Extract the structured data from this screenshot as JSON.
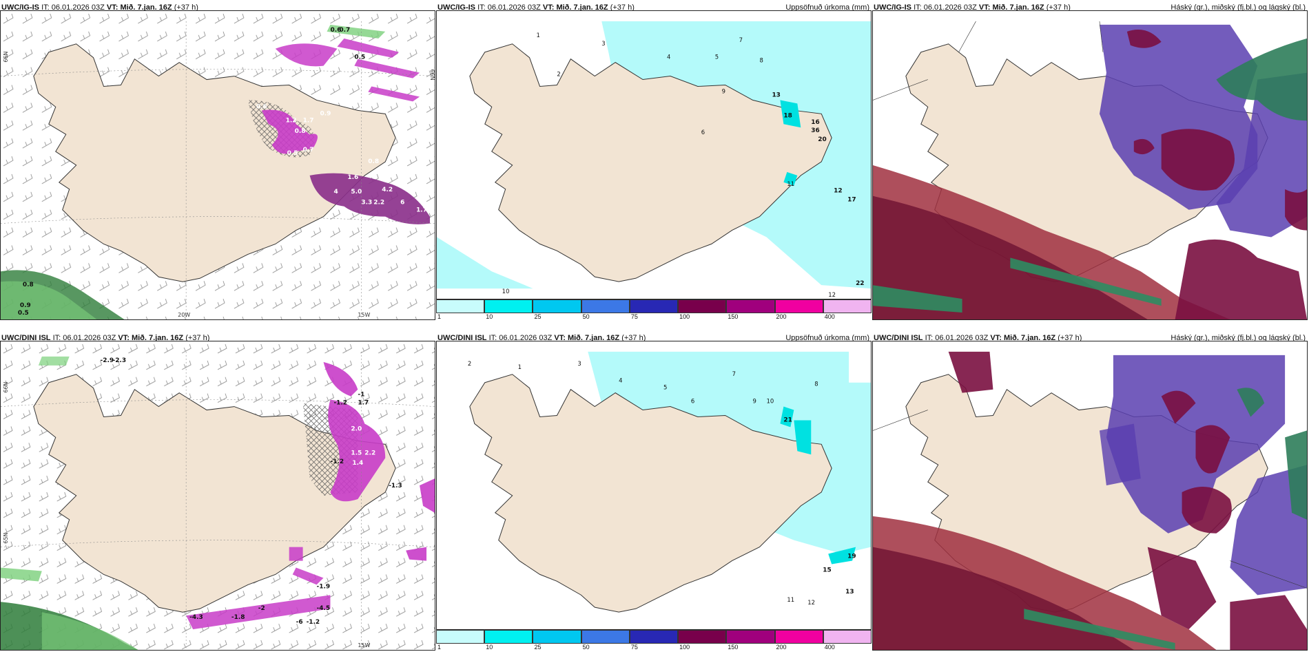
{
  "panels": {
    "p1": {
      "model": "UWC/IG-IS",
      "it_label": "IT:",
      "it": "06.01.2026 03Z",
      "vt_label": "VT:",
      "vt": "Mið. 7.jan. 16Z",
      "lead": "(+37 h)",
      "right": ""
    },
    "p2": {
      "model": "UWC/IG-IS",
      "it_label": "IT:",
      "it": "06.01.2026 03Z",
      "vt_label": "VT:",
      "vt": "Mið. 7.jan. 16Z",
      "lead": "(+37 h)",
      "right": "Uppsöfnuð úrkoma (mm)"
    },
    "p3": {
      "model": "UWC/IG-IS",
      "it_label": "IT:",
      "it": "06.01.2026 03Z",
      "vt_label": "VT:",
      "vt": "Mið. 7.jan. 16Z",
      "lead": "(+37 h)",
      "right": "Háský (gr.), miðský (fj.bl.) og lágský (bl.)"
    },
    "p4": {
      "model": "UWC/DINI ISL",
      "it_label": "IT:",
      "it": "06.01.2026 03Z",
      "vt_label": "VT:",
      "vt": "Mið. 7.jan. 16Z",
      "lead": "(+37 h)",
      "right": ""
    },
    "p5": {
      "model": "UWC/DINI ISL",
      "it_label": "IT:",
      "it": "06.01.2026 03Z",
      "vt_label": "VT:",
      "vt": "Mið. 7.jan. 16Z",
      "lead": "(+37 h)",
      "right": "Uppsöfnuð úrkoma (mm)"
    },
    "p6": {
      "model": "UWC/DINI ISL",
      "it_label": "IT:",
      "it": "06.01.2026 03Z",
      "vt_label": "VT:",
      "vt": "Mið. 7.jan. 16Z",
      "lead": "(+37 h)",
      "right": "Háský (gr.), miðský (fj.bl.) og lágský (bl.)"
    }
  },
  "map_labels": {
    "lat66": "66N",
    "lat65": "65N",
    "lon20": "20W",
    "lon15": "15W"
  },
  "legend": {
    "ticks": [
      "1",
      "10",
      "25",
      "50",
      "75",
      "100",
      "150",
      "200",
      "400"
    ],
    "colors": [
      "#c8fcfc",
      "#00f0f0",
      "#00c8f0",
      "#3c78e6",
      "#2828b4",
      "#78004b",
      "#a0007d",
      "#f000a0",
      "#f0b4f0"
    ]
  },
  "colors": {
    "land": "#f2e4d3",
    "precip_light": "#b4fafa",
    "precip_mid": "#00e1e1",
    "magenta": "#c83cc8",
    "green": "#78c878",
    "cloud_high": "#2e7d5a",
    "cloud_mid": "#6a2fa0",
    "cloud_low": "#8a1030"
  },
  "temp_values": {
    "p1": [
      "0.6",
      "0.7",
      "0.5",
      "0.6",
      "1.2",
      "1.7",
      "0.9",
      "0.8",
      "0.5",
      "0.7",
      "0.8",
      "1.6",
      "4",
      "5.0",
      "4.2",
      "3.3",
      "2.2",
      "6",
      "1.7",
      "0.8",
      "0.9",
      "0.5"
    ],
    "p4": [
      "-2.9",
      "-2.3",
      "-1",
      "-1.2",
      "1.7",
      "2.0",
      "1.5",
      "2.2",
      "-1.2",
      "1.4",
      "-1.3",
      "-1.9",
      "-2",
      "-1.8",
      "-4.3",
      "-4.5",
      "-6",
      "-1.2"
    ]
  },
  "precip_values": {
    "p2": [
      "1",
      "2",
      "3",
      "4",
      "5",
      "6",
      "7",
      "8",
      "9",
      "13",
      "18",
      "16",
      "36",
      "20",
      "12",
      "17",
      "22",
      "10",
      "11",
      "12"
    ],
    "p5": [
      "1",
      "2",
      "3",
      "4",
      "5",
      "6",
      "7",
      "8",
      "9",
      "10",
      "21",
      "19",
      "15",
      "13",
      "11",
      "12"
    ]
  }
}
